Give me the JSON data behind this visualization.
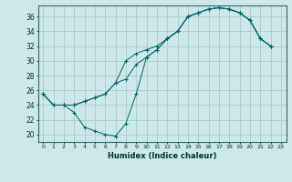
{
  "xlabel": "Humidex (Indice chaleur)",
  "bg_color": "#cce8e8",
  "grid_color": "#aacccc",
  "line_color": "#006666",
  "xlim": [
    -0.5,
    23.5
  ],
  "ylim": [
    19.0,
    37.5
  ],
  "yticks": [
    20,
    22,
    24,
    26,
    28,
    30,
    32,
    34,
    36
  ],
  "xticks": [
    0,
    1,
    2,
    3,
    4,
    5,
    6,
    7,
    8,
    9,
    10,
    11,
    12,
    13,
    14,
    15,
    16,
    17,
    18,
    19,
    20,
    21,
    22,
    23
  ],
  "line_a_x": [
    0,
    1,
    2,
    3,
    4,
    5,
    6,
    7,
    8,
    9,
    10,
    11,
    12,
    13,
    14,
    15,
    16,
    17,
    18,
    19,
    20,
    21,
    22
  ],
  "line_a_y": [
    25.5,
    24.0,
    24.0,
    23.0,
    21.0,
    20.5,
    20.0,
    19.8,
    21.5,
    25.5,
    30.5,
    31.5,
    33.0,
    34.0,
    36.0,
    36.5,
    37.0,
    37.2,
    37.0,
    36.5,
    35.5,
    33.0,
    32.0
  ],
  "line_b_x": [
    0,
    1,
    2,
    3,
    4,
    5,
    6,
    7,
    8,
    9,
    10,
    11,
    12,
    13,
    14,
    15,
    16,
    17,
    18,
    19,
    20,
    21,
    22
  ],
  "line_b_y": [
    25.5,
    24.0,
    24.0,
    24.0,
    24.5,
    25.0,
    25.5,
    27.0,
    27.5,
    29.5,
    30.5,
    31.5,
    33.0,
    34.0,
    36.0,
    36.5,
    37.0,
    37.2,
    37.0,
    36.5,
    35.5,
    33.0,
    32.0
  ],
  "line_c_x": [
    0,
    1,
    2,
    3,
    4,
    5,
    6,
    7,
    8,
    9,
    10,
    11,
    12,
    13,
    14,
    15,
    16,
    17,
    18,
    19,
    20,
    21,
    22
  ],
  "line_c_y": [
    25.5,
    24.0,
    24.0,
    24.0,
    24.5,
    25.0,
    25.5,
    27.0,
    30.0,
    31.0,
    31.5,
    32.0,
    33.0,
    34.0,
    36.0,
    36.5,
    37.0,
    37.2,
    37.0,
    36.5,
    35.5,
    33.0,
    32.0
  ]
}
